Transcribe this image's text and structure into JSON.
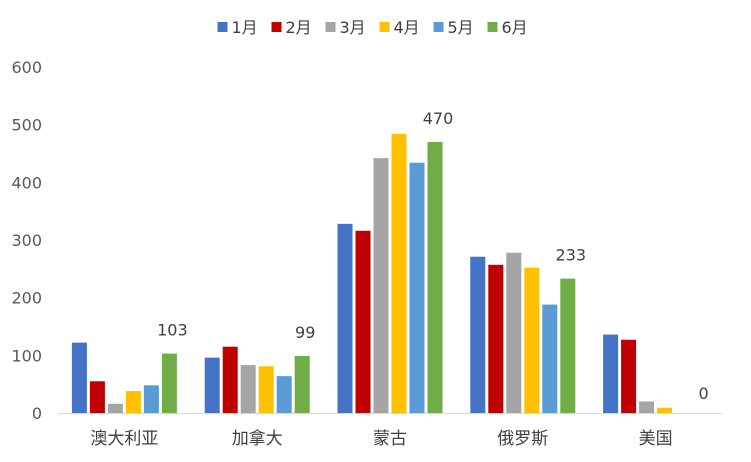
{
  "chart_data": {
    "type": "bar",
    "categories": [
      "澳大利亚",
      "加拿大",
      "蒙古",
      "俄罗斯",
      "美国"
    ],
    "series": [
      {
        "name": "1月",
        "color": "#4472C4",
        "values": [
          122,
          96,
          328,
          271,
          136
        ]
      },
      {
        "name": "2月",
        "color": "#C00000",
        "values": [
          55,
          115,
          316,
          257,
          127
        ]
      },
      {
        "name": "3月",
        "color": "#A5A5A5",
        "values": [
          16,
          83,
          442,
          278,
          20
        ]
      },
      {
        "name": "4月",
        "color": "#FFC000",
        "values": [
          38,
          81,
          484,
          252,
          9
        ]
      },
      {
        "name": "5月",
        "color": "#5B9BD5",
        "values": [
          48,
          64,
          434,
          188,
          0
        ]
      },
      {
        "name": "6月",
        "color": "#70AD47",
        "values": [
          103,
          99,
          470,
          233,
          0
        ]
      }
    ],
    "data_labels": [
      {
        "series": "6月",
        "category": "澳大利亚",
        "text": "103"
      },
      {
        "series": "6月",
        "category": "加拿大",
        "text": "99"
      },
      {
        "series": "6月",
        "category": "蒙古",
        "text": "470"
      },
      {
        "series": "6月",
        "category": "俄罗斯",
        "text": "233"
      },
      {
        "series": "6月",
        "category": "美国",
        "text": "0"
      }
    ],
    "yticks": [
      "0",
      "100",
      "200",
      "300",
      "400",
      "500",
      "600"
    ],
    "ylim": [
      0,
      600
    ],
    "grid": false,
    "legend_position": "top-center",
    "title": "",
    "xlabel": "",
    "ylabel": ""
  }
}
